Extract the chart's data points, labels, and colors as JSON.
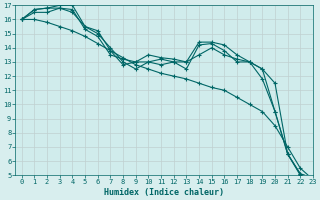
{
  "xlabel": "Humidex (Indice chaleur)",
  "bg_color": "#d8eeee",
  "plot_bg_color": "#d0ecec",
  "line_color": "#006666",
  "grid_color": "#c0d0d0",
  "xlim": [
    -0.5,
    23
  ],
  "ylim": [
    5,
    17
  ],
  "xticks": [
    0,
    1,
    2,
    3,
    4,
    5,
    6,
    7,
    8,
    9,
    10,
    11,
    12,
    13,
    14,
    15,
    16,
    17,
    18,
    19,
    20,
    21,
    22,
    23
  ],
  "yticks": [
    5,
    6,
    7,
    8,
    9,
    10,
    11,
    12,
    13,
    14,
    15,
    16,
    17
  ],
  "lines": [
    {
      "x": [
        0,
        1,
        2,
        3,
        4,
        5,
        6,
        7,
        8,
        9,
        10,
        11,
        12,
        13,
        14,
        15,
        16,
        17,
        18,
        19,
        20,
        21,
        22,
        23
      ],
      "y": [
        16.0,
        16.7,
        16.8,
        17.0,
        17.0,
        15.5,
        15.0,
        14.0,
        13.0,
        12.5,
        13.0,
        12.8,
        13.0,
        13.0,
        14.4,
        14.4,
        14.2,
        13.5,
        13.0,
        12.5,
        9.5,
        6.5,
        5.1,
        4.8
      ]
    },
    {
      "x": [
        0,
        1,
        2,
        3,
        4,
        5,
        6,
        7,
        8,
        9,
        10,
        11,
        12,
        13,
        14,
        15,
        16,
        17,
        18,
        19,
        20,
        21,
        22,
        23
      ],
      "y": [
        16.0,
        16.5,
        16.5,
        16.8,
        16.7,
        15.3,
        14.8,
        13.5,
        13.2,
        13.0,
        13.5,
        13.3,
        13.2,
        13.0,
        13.5,
        14.0,
        13.5,
        13.2,
        13.0,
        12.5,
        11.5,
        6.5,
        5.1,
        4.8
      ]
    },
    {
      "x": [
        0,
        1,
        2,
        3,
        4,
        5,
        6,
        7,
        8,
        9,
        10,
        11,
        12,
        13,
        14,
        15,
        16,
        17,
        18,
        19,
        20,
        21,
        22,
        23
      ],
      "y": [
        16.0,
        16.7,
        16.8,
        16.8,
        16.5,
        15.5,
        15.2,
        13.8,
        12.8,
        13.0,
        13.0,
        13.2,
        13.0,
        12.5,
        14.2,
        14.3,
        13.8,
        13.0,
        13.0,
        11.8,
        9.5,
        6.5,
        5.0,
        4.7
      ]
    },
    {
      "x": [
        0,
        1,
        2,
        3,
        4,
        5,
        6,
        7,
        8,
        9,
        10,
        11,
        12,
        13,
        14,
        15,
        16,
        17,
        18,
        19,
        20,
        21,
        22,
        23
      ],
      "y": [
        16.0,
        16.0,
        15.8,
        15.5,
        15.2,
        14.8,
        14.3,
        13.8,
        13.3,
        12.8,
        12.5,
        12.2,
        12.0,
        11.8,
        11.5,
        11.2,
        11.0,
        10.5,
        10.0,
        9.5,
        8.5,
        7.0,
        5.5,
        4.7
      ]
    }
  ]
}
